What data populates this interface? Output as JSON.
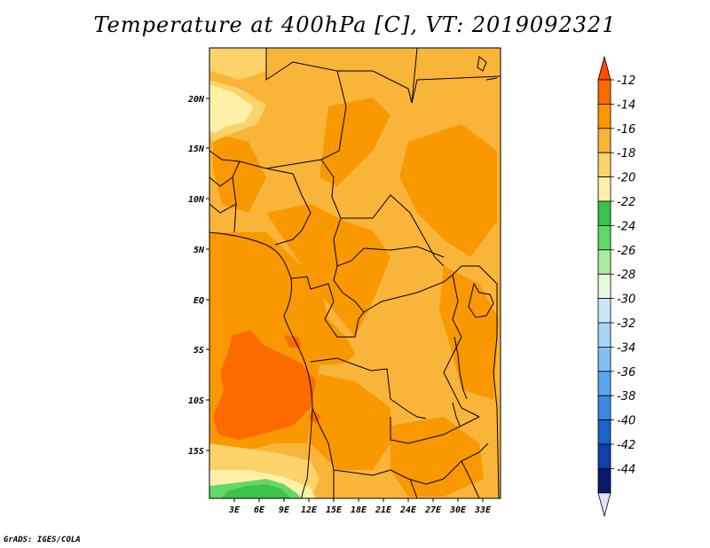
{
  "title": "Temperature at 400hPa [C], VT: 2019092321",
  "credit": "GrADS: IGES/COLA",
  "map": {
    "lat_labels": [
      "20N",
      "15N",
      "10N",
      "5N",
      "EQ",
      "5S",
      "10S",
      "15S"
    ],
    "lon_labels": [
      "3E",
      "6E",
      "9E",
      "12E",
      "15E",
      "18E",
      "21E",
      "24E",
      "27E",
      "30E",
      "33E"
    ]
  },
  "colorbar": {
    "labels": [
      "-12",
      "-14",
      "-16",
      "-18",
      "-20",
      "-22",
      "-24",
      "-26",
      "-28",
      "-30",
      "-32",
      "-34",
      "-36",
      "-38",
      "-40",
      "-42",
      "-44"
    ],
    "colors": [
      "#ff4a00",
      "#fd6a00",
      "#f99800",
      "#f9b43a",
      "#fbd36a",
      "#fff0a8",
      "#3ac24a",
      "#62d868",
      "#a8eca0",
      "#e6fae0",
      "#c8e8fa",
      "#a6d6f6",
      "#82c0f2",
      "#5aa6ec",
      "#3a88e0",
      "#1e64c8",
      "#1040a8",
      "#081a6e",
      "#e4e2f8"
    ]
  },
  "fill_colors": {
    "c14": "#fd6a00",
    "c16": "#f99800",
    "c18": "#f9b43a",
    "c20": "#fbd36a",
    "c22": "#fff0a8",
    "c24": "#3ac24a",
    "c26": "#62d868"
  }
}
